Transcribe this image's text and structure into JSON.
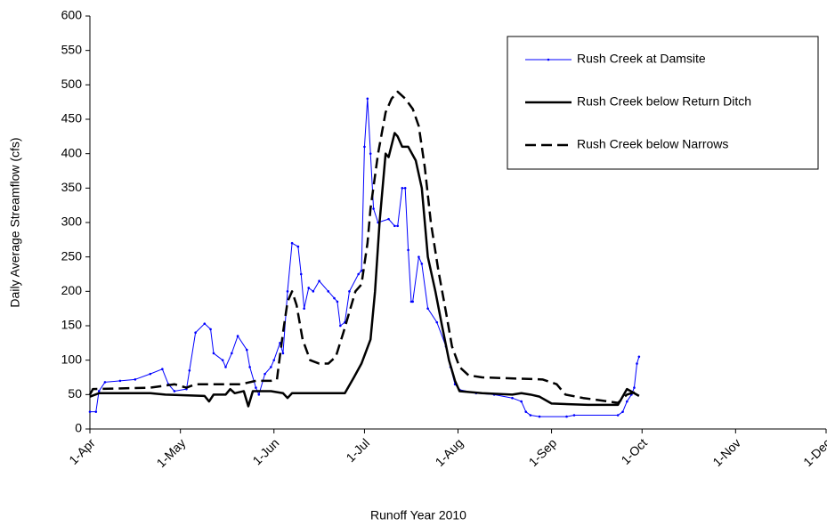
{
  "chart_data": {
    "type": "line",
    "xlabel": "Runoff Year 2010",
    "ylabel": "Daily Average Streamflow (cfs)",
    "xlim": [
      0,
      244
    ],
    "xticks": [
      {
        "value": 0,
        "label": "1-Apr"
      },
      {
        "value": 30,
        "label": "1-May"
      },
      {
        "value": 61,
        "label": "1-Jun"
      },
      {
        "value": 91,
        "label": "1-Jul"
      },
      {
        "value": 122,
        "label": "1-Aug"
      },
      {
        "value": 153,
        "label": "1-Sep"
      },
      {
        "value": 183,
        "label": "1-Oct"
      },
      {
        "value": 214,
        "label": "1-Nov"
      },
      {
        "value": 244,
        "label": "1-Dec"
      }
    ],
    "ylim": [
      0,
      600
    ],
    "yticks": [
      0,
      50,
      100,
      150,
      200,
      250,
      300,
      350,
      400,
      450,
      500,
      550,
      600
    ],
    "legend": "upper right",
    "series": [
      {
        "name": "Rush Creek at Damsite",
        "color": "#0000ff",
        "style": "solid",
        "markers": true,
        "width": 1,
        "x": [
          0,
          2,
          3,
          5,
          10,
          15,
          20,
          24,
          26,
          28,
          32,
          33,
          35,
          38,
          40,
          41,
          44,
          45,
          47,
          49,
          52,
          53,
          55,
          56,
          58,
          60,
          61,
          63,
          64,
          65.5,
          67,
          69,
          70,
          71,
          72.5,
          74,
          76,
          79,
          81,
          82,
          83,
          84.5,
          86,
          89,
          90,
          91,
          92,
          93,
          94,
          95.5,
          99,
          101,
          102,
          103.5,
          104.5,
          105.5,
          106.5,
          107,
          109,
          110,
          112,
          115,
          118,
          119.5,
          121,
          122.5,
          128,
          134,
          140,
          143,
          144.5,
          146,
          149,
          158,
          160.5,
          175,
          176.6,
          178,
          179.5,
          180.4,
          181.3,
          182
        ],
        "values": [
          25,
          25,
          55,
          68,
          70,
          72,
          80,
          87,
          65,
          55,
          58,
          85,
          140,
          153,
          145,
          110,
          100,
          90,
          110,
          135,
          115,
          90,
          60,
          50,
          80,
          90,
          100,
          125,
          110,
          200,
          270,
          265,
          225,
          175,
          205,
          200,
          215,
          200,
          190,
          185,
          150,
          155,
          200,
          225,
          230,
          410,
          480,
          400,
          320,
          300,
          305,
          295,
          295,
          350,
          350,
          260,
          185,
          185,
          250,
          240,
          175,
          155,
          120,
          90,
          65,
          57,
          52,
          50,
          45,
          40,
          25,
          20,
          18,
          18,
          20,
          20,
          25,
          40,
          50,
          60,
          95,
          105
        ]
      },
      {
        "name": "Rush Creek below Return Ditch",
        "color": "#000000",
        "style": "solid",
        "markers": false,
        "width": 2.5,
        "x": [
          0,
          3,
          20,
          25,
          38,
          39.5,
          41,
          45,
          46.5,
          48,
          51,
          52.5,
          54,
          60,
          64,
          65.5,
          67,
          84.5,
          87.5,
          90,
          93,
          94.5,
          96,
          98,
          99,
          101,
          102,
          103.5,
          105.5,
          108,
          110,
          112,
          114.5,
          116.7,
          119,
          121,
          122.5,
          130,
          140,
          143,
          146,
          149,
          153,
          165,
          175,
          178,
          182
        ],
        "values": [
          47,
          52,
          52,
          50,
          48,
          40,
          50,
          50,
          58,
          52,
          55,
          33,
          55,
          55,
          52,
          45,
          52,
          52,
          75,
          95,
          130,
          200,
          300,
          400,
          395,
          430,
          425,
          410,
          410,
          390,
          350,
          250,
          200,
          150,
          100,
          70,
          55,
          52,
          50,
          52,
          50,
          47,
          37,
          35,
          35,
          58,
          48
        ]
      },
      {
        "name": "Rush Creek below Narrows",
        "color": "#000000",
        "style": "dashed",
        "markers": false,
        "width": 2.5,
        "x": [
          0,
          1,
          20,
          28,
          32,
          35,
          50,
          55,
          60,
          62,
          62.5,
          64,
          65.5,
          67,
          68.5,
          70.5,
          73,
          76,
          79,
          81.5,
          84,
          86,
          88,
          90,
          92,
          93,
          95.5,
          98,
          100,
          102,
          104.5,
          107,
          109,
          111,
          113,
          115.5,
          118,
          120,
          122.5,
          125.5,
          130,
          150,
          154.7,
          157.6,
          163.5,
          175,
          178,
          182
        ],
        "values": [
          50,
          58,
          60,
          65,
          60,
          65,
          65,
          70,
          70,
          72,
          90,
          140,
          185,
          200,
          180,
          130,
          100,
          95,
          95,
          105,
          140,
          170,
          200,
          210,
          270,
          320,
          400,
          460,
          480,
          490,
          480,
          465,
          440,
          380,
          300,
          230,
          170,
          120,
          90,
          78,
          75,
          72,
          65,
          50,
          45,
          38,
          50,
          55
        ]
      }
    ]
  }
}
